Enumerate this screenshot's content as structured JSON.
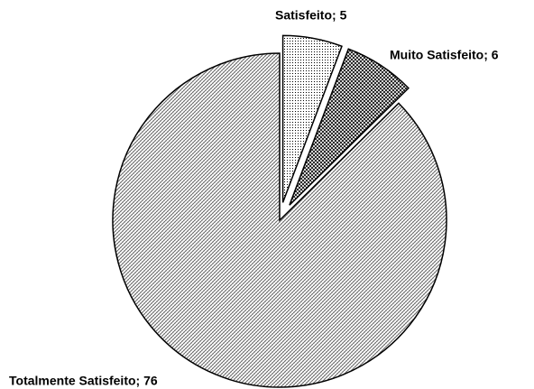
{
  "chart_data": {
    "type": "pie",
    "values": [
      5,
      6,
      76
    ],
    "value_labels": [
      "Satisfeito; 5",
      "Muito Satisfeito; 6",
      "Totalmente Satisfeito; 76"
    ]
  }
}
